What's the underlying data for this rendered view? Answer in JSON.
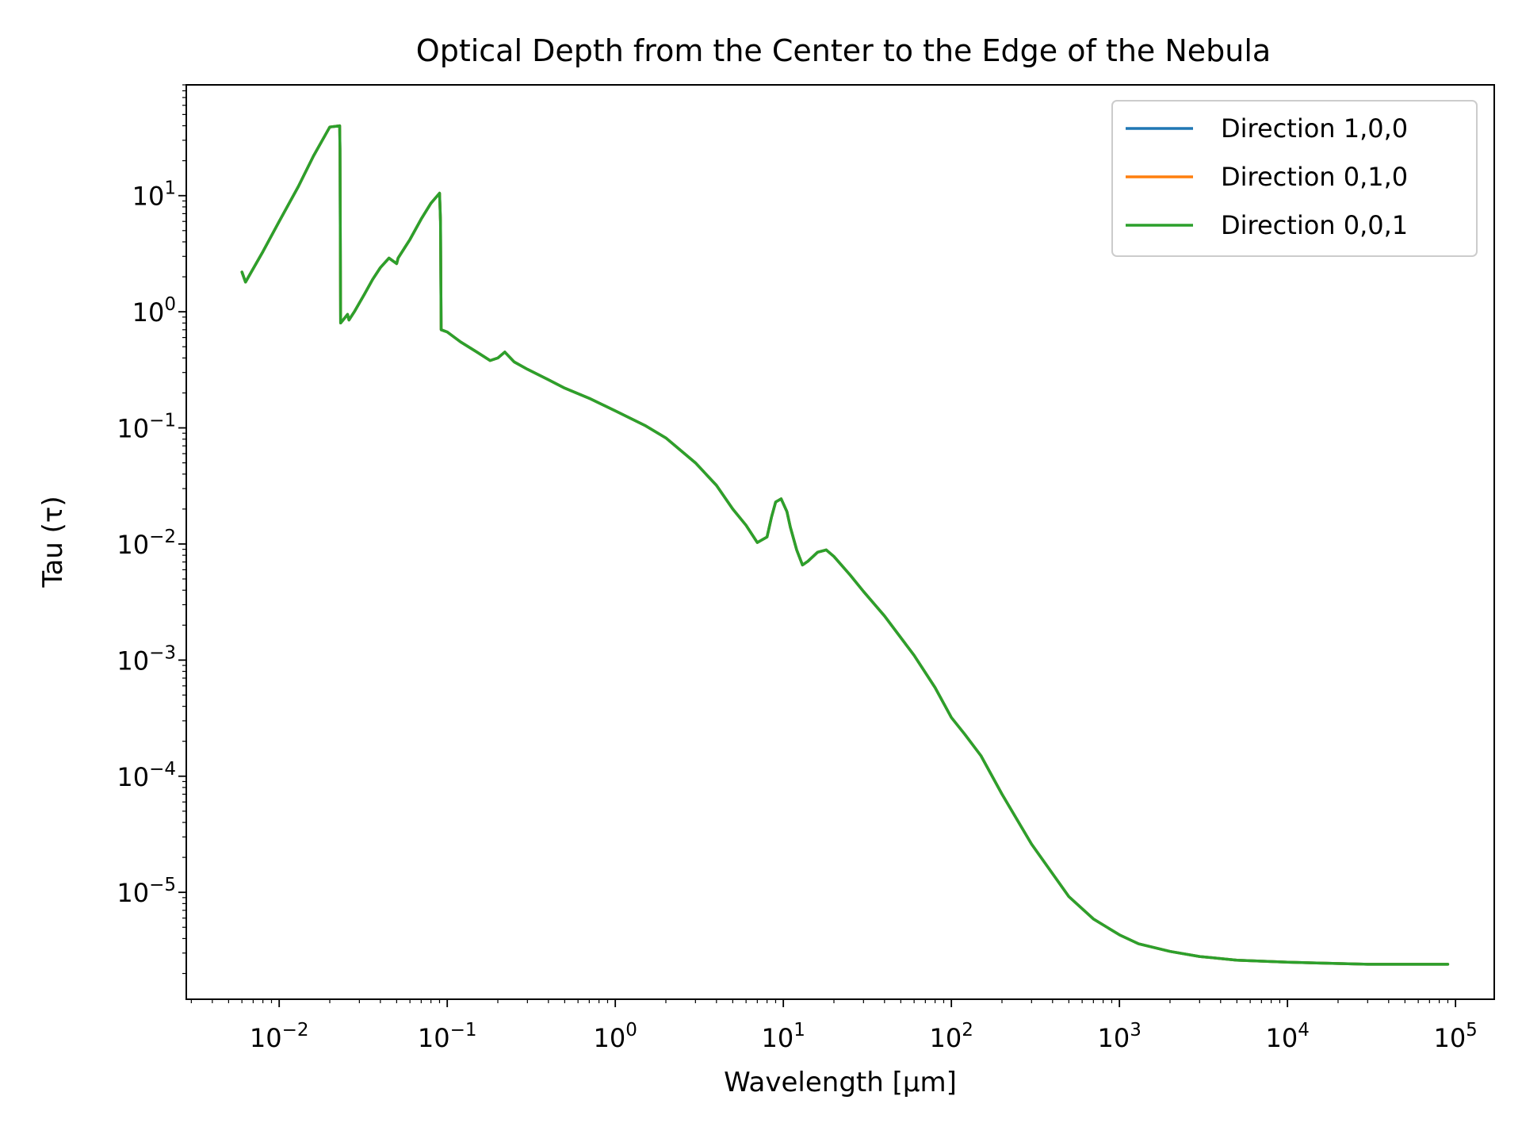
{
  "chart_data": {
    "type": "line",
    "title": "Optical Depth from the Center to the Edge of the Nebula",
    "xlabel": "Wavelength [μm]",
    "ylabel": "Tau (τ)",
    "xscale": "log",
    "yscale": "log",
    "xlim": [
      0.0028,
      170000
    ],
    "ylim": [
      1.2e-06,
      90
    ],
    "grid": false,
    "legend_position": "top-right",
    "x_ticks": [
      {
        "exp": "−2",
        "value": 0.01
      },
      {
        "exp": "−1",
        "value": 0.1
      },
      {
        "exp": "0",
        "value": 1
      },
      {
        "exp": "1",
        "value": 10
      },
      {
        "exp": "2",
        "value": 100
      },
      {
        "exp": "3",
        "value": 1000
      },
      {
        "exp": "4",
        "value": 10000
      },
      {
        "exp": "5",
        "value": 100000
      }
    ],
    "y_ticks": [
      {
        "exp": "1",
        "value": 10
      },
      {
        "exp": "0",
        "value": 1
      },
      {
        "exp": "−1",
        "value": 0.1
      },
      {
        "exp": "−2",
        "value": 0.01
      },
      {
        "exp": "−3",
        "value": 0.001
      },
      {
        "exp": "−4",
        "value": 0.0001
      },
      {
        "exp": "−5",
        "value": 1e-05
      }
    ],
    "series": [
      {
        "name": "Direction 1,0,0",
        "color": "#1f77b4",
        "x": [
          0.006,
          0.0063,
          0.008,
          0.01,
          0.013,
          0.016,
          0.02,
          0.0229,
          0.023,
          0.0232,
          0.024,
          0.0255,
          0.026,
          0.028,
          0.032,
          0.036,
          0.04,
          0.045,
          0.05,
          0.051,
          0.06,
          0.07,
          0.08,
          0.09,
          0.0912,
          0.092,
          0.1,
          0.12,
          0.15,
          0.18,
          0.2,
          0.22,
          0.25,
          0.3,
          0.4,
          0.5,
          0.7,
          1,
          1.5,
          2,
          3,
          4,
          5,
          6,
          7,
          8,
          8.5,
          9,
          9.7,
          10.5,
          11,
          12,
          13,
          14,
          16,
          18,
          20,
          25,
          30,
          40,
          60,
          80,
          100,
          120,
          150,
          200,
          300,
          500,
          700,
          1000,
          1300,
          2000,
          3000,
          5000,
          10000,
          30000,
          90000
        ],
        "y": [
          2.2,
          1.8,
          3.3,
          6,
          12,
          22,
          39,
          40,
          25,
          0.8,
          0.85,
          0.95,
          0.85,
          1.0,
          1.4,
          1.9,
          2.4,
          2.9,
          2.6,
          2.9,
          4.2,
          6.3,
          8.6,
          10.5,
          6,
          0.7,
          0.67,
          0.55,
          0.45,
          0.38,
          0.4,
          0.45,
          0.37,
          0.32,
          0.26,
          0.22,
          0.18,
          0.14,
          0.105,
          0.082,
          0.05,
          0.032,
          0.02,
          0.0145,
          0.0103,
          0.0115,
          0.017,
          0.023,
          0.0245,
          0.019,
          0.014,
          0.0089,
          0.0066,
          0.0071,
          0.0085,
          0.0089,
          0.0078,
          0.0054,
          0.0039,
          0.0024,
          0.0011,
          0.00058,
          0.00032,
          0.00023,
          0.00015,
          7e-05,
          2.6e-05,
          9.2e-06,
          5.9e-06,
          4.3e-06,
          3.6e-06,
          3.1e-06,
          2.8e-06,
          2.6e-06,
          2.5e-06,
          2.4e-06,
          2.4e-06
        ]
      },
      {
        "name": "Direction 0,1,0",
        "color": "#ff7f0e",
        "x": [
          0.006,
          0.0063,
          0.008,
          0.01,
          0.013,
          0.016,
          0.02,
          0.0229,
          0.023,
          0.0232,
          0.024,
          0.0255,
          0.026,
          0.028,
          0.032,
          0.036,
          0.04,
          0.045,
          0.05,
          0.051,
          0.06,
          0.07,
          0.08,
          0.09,
          0.0912,
          0.092,
          0.1,
          0.12,
          0.15,
          0.18,
          0.2,
          0.22,
          0.25,
          0.3,
          0.4,
          0.5,
          0.7,
          1,
          1.5,
          2,
          3,
          4,
          5,
          6,
          7,
          8,
          8.5,
          9,
          9.7,
          10.5,
          11,
          12,
          13,
          14,
          16,
          18,
          20,
          25,
          30,
          40,
          60,
          80,
          100,
          120,
          150,
          200,
          300,
          500,
          700,
          1000,
          1300,
          2000,
          3000,
          5000,
          10000,
          30000,
          90000
        ],
        "y": [
          2.2,
          1.8,
          3.3,
          6,
          12,
          22,
          39,
          40,
          25,
          0.8,
          0.85,
          0.95,
          0.85,
          1.0,
          1.4,
          1.9,
          2.4,
          2.9,
          2.6,
          2.9,
          4.2,
          6.3,
          8.6,
          10.5,
          6,
          0.7,
          0.67,
          0.55,
          0.45,
          0.38,
          0.4,
          0.45,
          0.37,
          0.32,
          0.26,
          0.22,
          0.18,
          0.14,
          0.105,
          0.082,
          0.05,
          0.032,
          0.02,
          0.0145,
          0.0103,
          0.0115,
          0.017,
          0.023,
          0.0245,
          0.019,
          0.014,
          0.0089,
          0.0066,
          0.0071,
          0.0085,
          0.0089,
          0.0078,
          0.0054,
          0.0039,
          0.0024,
          0.0011,
          0.00058,
          0.00032,
          0.00023,
          0.00015,
          7e-05,
          2.6e-05,
          9.2e-06,
          5.9e-06,
          4.3e-06,
          3.6e-06,
          3.1e-06,
          2.8e-06,
          2.6e-06,
          2.5e-06,
          2.4e-06,
          2.4e-06
        ]
      },
      {
        "name": "Direction 0,0,1",
        "color": "#2ca02c",
        "x": [
          0.006,
          0.0063,
          0.008,
          0.01,
          0.013,
          0.016,
          0.02,
          0.0229,
          0.023,
          0.0232,
          0.024,
          0.0255,
          0.026,
          0.028,
          0.032,
          0.036,
          0.04,
          0.045,
          0.05,
          0.051,
          0.06,
          0.07,
          0.08,
          0.09,
          0.0912,
          0.092,
          0.1,
          0.12,
          0.15,
          0.18,
          0.2,
          0.22,
          0.25,
          0.3,
          0.4,
          0.5,
          0.7,
          1,
          1.5,
          2,
          3,
          4,
          5,
          6,
          7,
          8,
          8.5,
          9,
          9.7,
          10.5,
          11,
          12,
          13,
          14,
          16,
          18,
          20,
          25,
          30,
          40,
          60,
          80,
          100,
          120,
          150,
          200,
          300,
          500,
          700,
          1000,
          1300,
          2000,
          3000,
          5000,
          10000,
          30000,
          90000
        ],
        "y": [
          2.2,
          1.8,
          3.3,
          6,
          12,
          22,
          39,
          40,
          25,
          0.8,
          0.85,
          0.95,
          0.85,
          1.0,
          1.4,
          1.9,
          2.4,
          2.9,
          2.6,
          2.9,
          4.2,
          6.3,
          8.6,
          10.5,
          6,
          0.7,
          0.67,
          0.55,
          0.45,
          0.38,
          0.4,
          0.45,
          0.37,
          0.32,
          0.26,
          0.22,
          0.18,
          0.14,
          0.105,
          0.082,
          0.05,
          0.032,
          0.02,
          0.0145,
          0.0103,
          0.0115,
          0.017,
          0.023,
          0.0245,
          0.019,
          0.014,
          0.0089,
          0.0066,
          0.0071,
          0.0085,
          0.0089,
          0.0078,
          0.0054,
          0.0039,
          0.0024,
          0.0011,
          0.00058,
          0.00032,
          0.00023,
          0.00015,
          7e-05,
          2.6e-05,
          9.2e-06,
          5.9e-06,
          4.3e-06,
          3.6e-06,
          3.1e-06,
          2.8e-06,
          2.6e-06,
          2.5e-06,
          2.4e-06,
          2.4e-06
        ]
      }
    ]
  }
}
